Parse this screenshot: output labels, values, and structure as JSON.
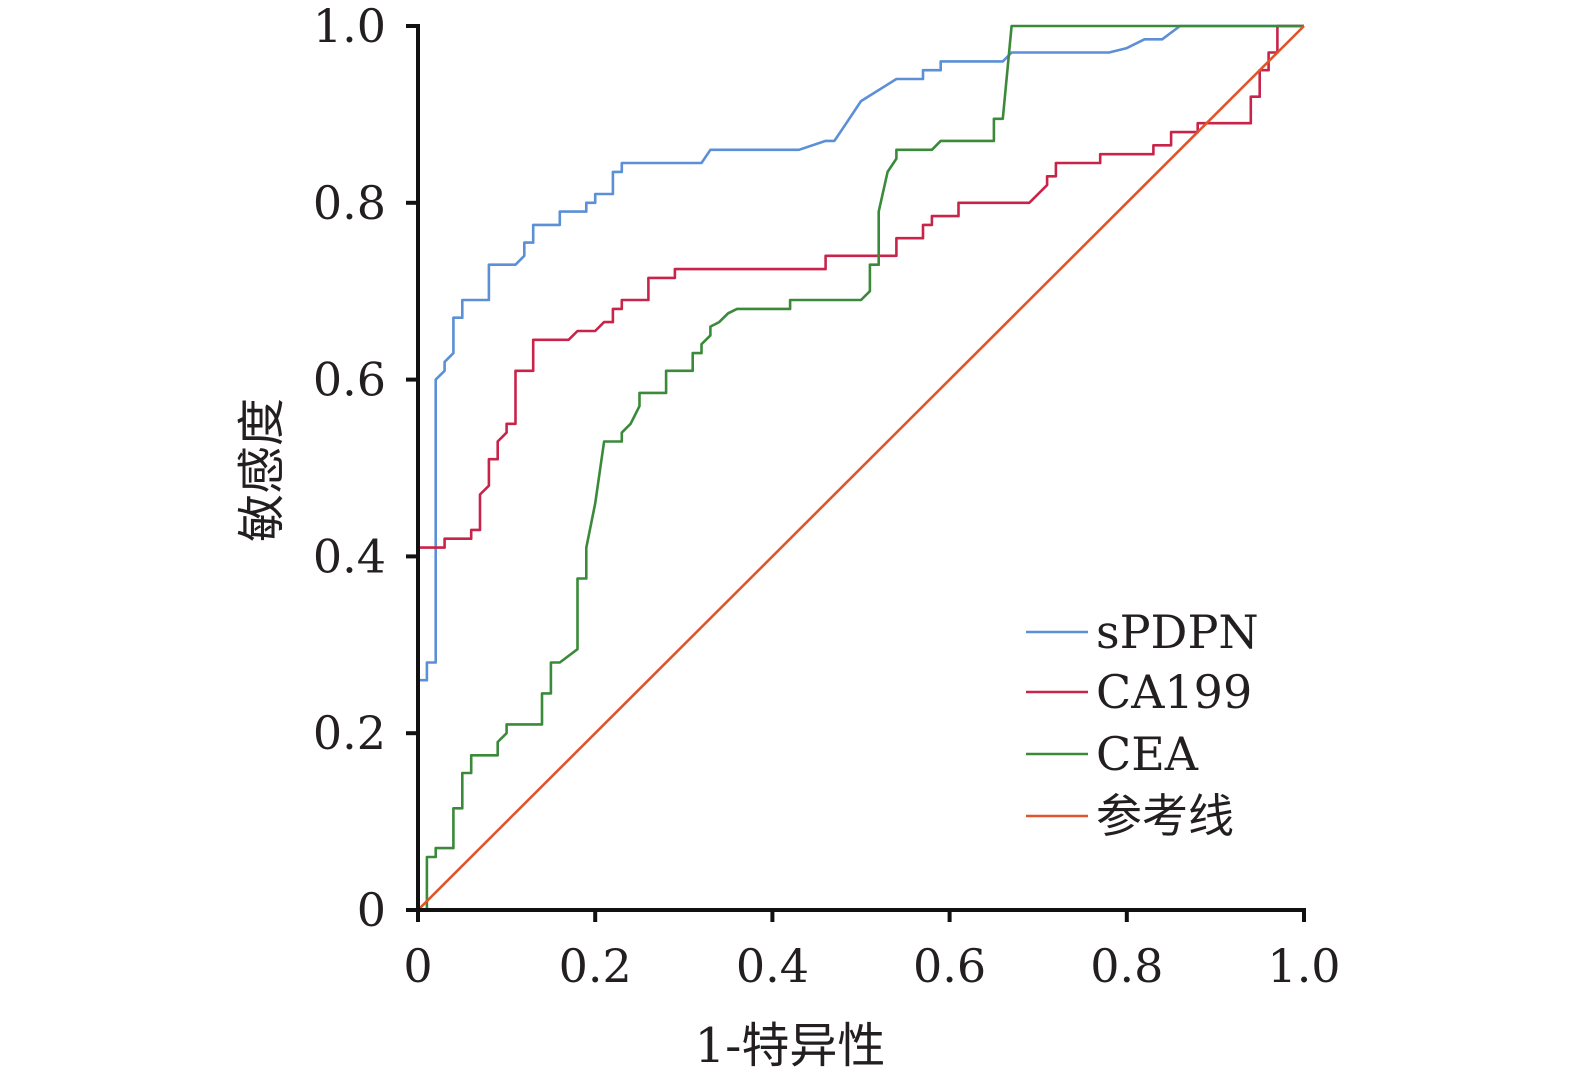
{
  "chart_data": {
    "type": "line",
    "title": "",
    "xlabel": "1-特异性",
    "ylabel": "敏感度",
    "xlim": [
      0,
      1.0
    ],
    "ylim": [
      0,
      1.0
    ],
    "x_ticks": [
      "0",
      "0.2",
      "0.4",
      "0.6",
      "0.8",
      "1.0"
    ],
    "y_ticks": [
      "0",
      "0.2",
      "0.4",
      "0.6",
      "0.8",
      "1.0"
    ],
    "grid": false,
    "legend_position": "bottom-right",
    "series": [
      {
        "name": "sPDPN",
        "color": "#5b8fd6",
        "points": [
          [
            0,
            0
          ],
          [
            0,
            0.26
          ],
          [
            0.01,
            0.26
          ],
          [
            0.01,
            0.28
          ],
          [
            0.02,
            0.28
          ],
          [
            0.02,
            0.6
          ],
          [
            0.03,
            0.61
          ],
          [
            0.03,
            0.62
          ],
          [
            0.04,
            0.63
          ],
          [
            0.04,
            0.67
          ],
          [
            0.05,
            0.67
          ],
          [
            0.05,
            0.69
          ],
          [
            0.08,
            0.69
          ],
          [
            0.08,
            0.73
          ],
          [
            0.11,
            0.73
          ],
          [
            0.12,
            0.74
          ],
          [
            0.12,
            0.755
          ],
          [
            0.13,
            0.755
          ],
          [
            0.13,
            0.775
          ],
          [
            0.16,
            0.775
          ],
          [
            0.16,
            0.79
          ],
          [
            0.19,
            0.79
          ],
          [
            0.19,
            0.8
          ],
          [
            0.2,
            0.8
          ],
          [
            0.2,
            0.81
          ],
          [
            0.22,
            0.81
          ],
          [
            0.22,
            0.835
          ],
          [
            0.23,
            0.835
          ],
          [
            0.23,
            0.845
          ],
          [
            0.32,
            0.845
          ],
          [
            0.33,
            0.86
          ],
          [
            0.43,
            0.86
          ],
          [
            0.46,
            0.87
          ],
          [
            0.47,
            0.87
          ],
          [
            0.48,
            0.885
          ],
          [
            0.5,
            0.915
          ],
          [
            0.54,
            0.94
          ],
          [
            0.57,
            0.94
          ],
          [
            0.57,
            0.95
          ],
          [
            0.59,
            0.95
          ],
          [
            0.59,
            0.96
          ],
          [
            0.66,
            0.96
          ],
          [
            0.67,
            0.97
          ],
          [
            0.78,
            0.97
          ],
          [
            0.8,
            0.975
          ],
          [
            0.82,
            0.985
          ],
          [
            0.84,
            0.985
          ],
          [
            0.86,
            1.0
          ],
          [
            1.0,
            1.0
          ]
        ]
      },
      {
        "name": "CA199",
        "color": "#c8244a",
        "points": [
          [
            0,
            0
          ],
          [
            0,
            0.41
          ],
          [
            0.03,
            0.41
          ],
          [
            0.03,
            0.42
          ],
          [
            0.06,
            0.42
          ],
          [
            0.06,
            0.43
          ],
          [
            0.07,
            0.43
          ],
          [
            0.07,
            0.47
          ],
          [
            0.08,
            0.48
          ],
          [
            0.08,
            0.51
          ],
          [
            0.09,
            0.51
          ],
          [
            0.09,
            0.53
          ],
          [
            0.1,
            0.54
          ],
          [
            0.1,
            0.55
          ],
          [
            0.11,
            0.55
          ],
          [
            0.11,
            0.61
          ],
          [
            0.13,
            0.61
          ],
          [
            0.13,
            0.645
          ],
          [
            0.17,
            0.645
          ],
          [
            0.18,
            0.655
          ],
          [
            0.2,
            0.655
          ],
          [
            0.21,
            0.665
          ],
          [
            0.22,
            0.665
          ],
          [
            0.22,
            0.68
          ],
          [
            0.23,
            0.68
          ],
          [
            0.23,
            0.69
          ],
          [
            0.26,
            0.69
          ],
          [
            0.26,
            0.715
          ],
          [
            0.29,
            0.715
          ],
          [
            0.29,
            0.725
          ],
          [
            0.46,
            0.725
          ],
          [
            0.46,
            0.74
          ],
          [
            0.54,
            0.74
          ],
          [
            0.54,
            0.76
          ],
          [
            0.57,
            0.76
          ],
          [
            0.57,
            0.775
          ],
          [
            0.58,
            0.775
          ],
          [
            0.58,
            0.785
          ],
          [
            0.61,
            0.785
          ],
          [
            0.61,
            0.8
          ],
          [
            0.69,
            0.8
          ],
          [
            0.71,
            0.82
          ],
          [
            0.71,
            0.83
          ],
          [
            0.72,
            0.83
          ],
          [
            0.72,
            0.845
          ],
          [
            0.77,
            0.845
          ],
          [
            0.77,
            0.855
          ],
          [
            0.83,
            0.855
          ],
          [
            0.83,
            0.865
          ],
          [
            0.85,
            0.865
          ],
          [
            0.85,
            0.88
          ],
          [
            0.88,
            0.88
          ],
          [
            0.88,
            0.89
          ],
          [
            0.94,
            0.89
          ],
          [
            0.94,
            0.92
          ],
          [
            0.95,
            0.92
          ],
          [
            0.95,
            0.95
          ],
          [
            0.96,
            0.95
          ],
          [
            0.96,
            0.97
          ],
          [
            0.97,
            0.97
          ],
          [
            0.97,
            1.0
          ],
          [
            1.0,
            1.0
          ]
        ]
      },
      {
        "name": "CEA",
        "color": "#3a8a3a",
        "points": [
          [
            0,
            0
          ],
          [
            0.01,
            0
          ],
          [
            0.01,
            0.06
          ],
          [
            0.02,
            0.06
          ],
          [
            0.02,
            0.07
          ],
          [
            0.04,
            0.07
          ],
          [
            0.04,
            0.115
          ],
          [
            0.05,
            0.115
          ],
          [
            0.05,
            0.155
          ],
          [
            0.06,
            0.155
          ],
          [
            0.06,
            0.175
          ],
          [
            0.09,
            0.175
          ],
          [
            0.09,
            0.19
          ],
          [
            0.1,
            0.2
          ],
          [
            0.1,
            0.21
          ],
          [
            0.14,
            0.21
          ],
          [
            0.14,
            0.245
          ],
          [
            0.15,
            0.245
          ],
          [
            0.15,
            0.28
          ],
          [
            0.16,
            0.28
          ],
          [
            0.18,
            0.295
          ],
          [
            0.18,
            0.375
          ],
          [
            0.19,
            0.375
          ],
          [
            0.19,
            0.41
          ],
          [
            0.2,
            0.46
          ],
          [
            0.21,
            0.53
          ],
          [
            0.23,
            0.53
          ],
          [
            0.23,
            0.54
          ],
          [
            0.24,
            0.55
          ],
          [
            0.25,
            0.57
          ],
          [
            0.25,
            0.585
          ],
          [
            0.28,
            0.585
          ],
          [
            0.28,
            0.61
          ],
          [
            0.31,
            0.61
          ],
          [
            0.31,
            0.63
          ],
          [
            0.32,
            0.63
          ],
          [
            0.32,
            0.64
          ],
          [
            0.33,
            0.65
          ],
          [
            0.33,
            0.66
          ],
          [
            0.34,
            0.665
          ],
          [
            0.35,
            0.675
          ],
          [
            0.36,
            0.68
          ],
          [
            0.42,
            0.68
          ],
          [
            0.42,
            0.69
          ],
          [
            0.5,
            0.69
          ],
          [
            0.51,
            0.7
          ],
          [
            0.51,
            0.73
          ],
          [
            0.52,
            0.73
          ],
          [
            0.52,
            0.79
          ],
          [
            0.53,
            0.835
          ],
          [
            0.54,
            0.85
          ],
          [
            0.54,
            0.86
          ],
          [
            0.58,
            0.86
          ],
          [
            0.59,
            0.87
          ],
          [
            0.65,
            0.87
          ],
          [
            0.65,
            0.895
          ],
          [
            0.66,
            0.895
          ],
          [
            0.67,
            1.0
          ],
          [
            1.0,
            1.0
          ]
        ]
      },
      {
        "name": "参考线",
        "color": "#e0542a",
        "points": [
          [
            0,
            0
          ],
          [
            1.0,
            1.0
          ]
        ]
      }
    ]
  }
}
